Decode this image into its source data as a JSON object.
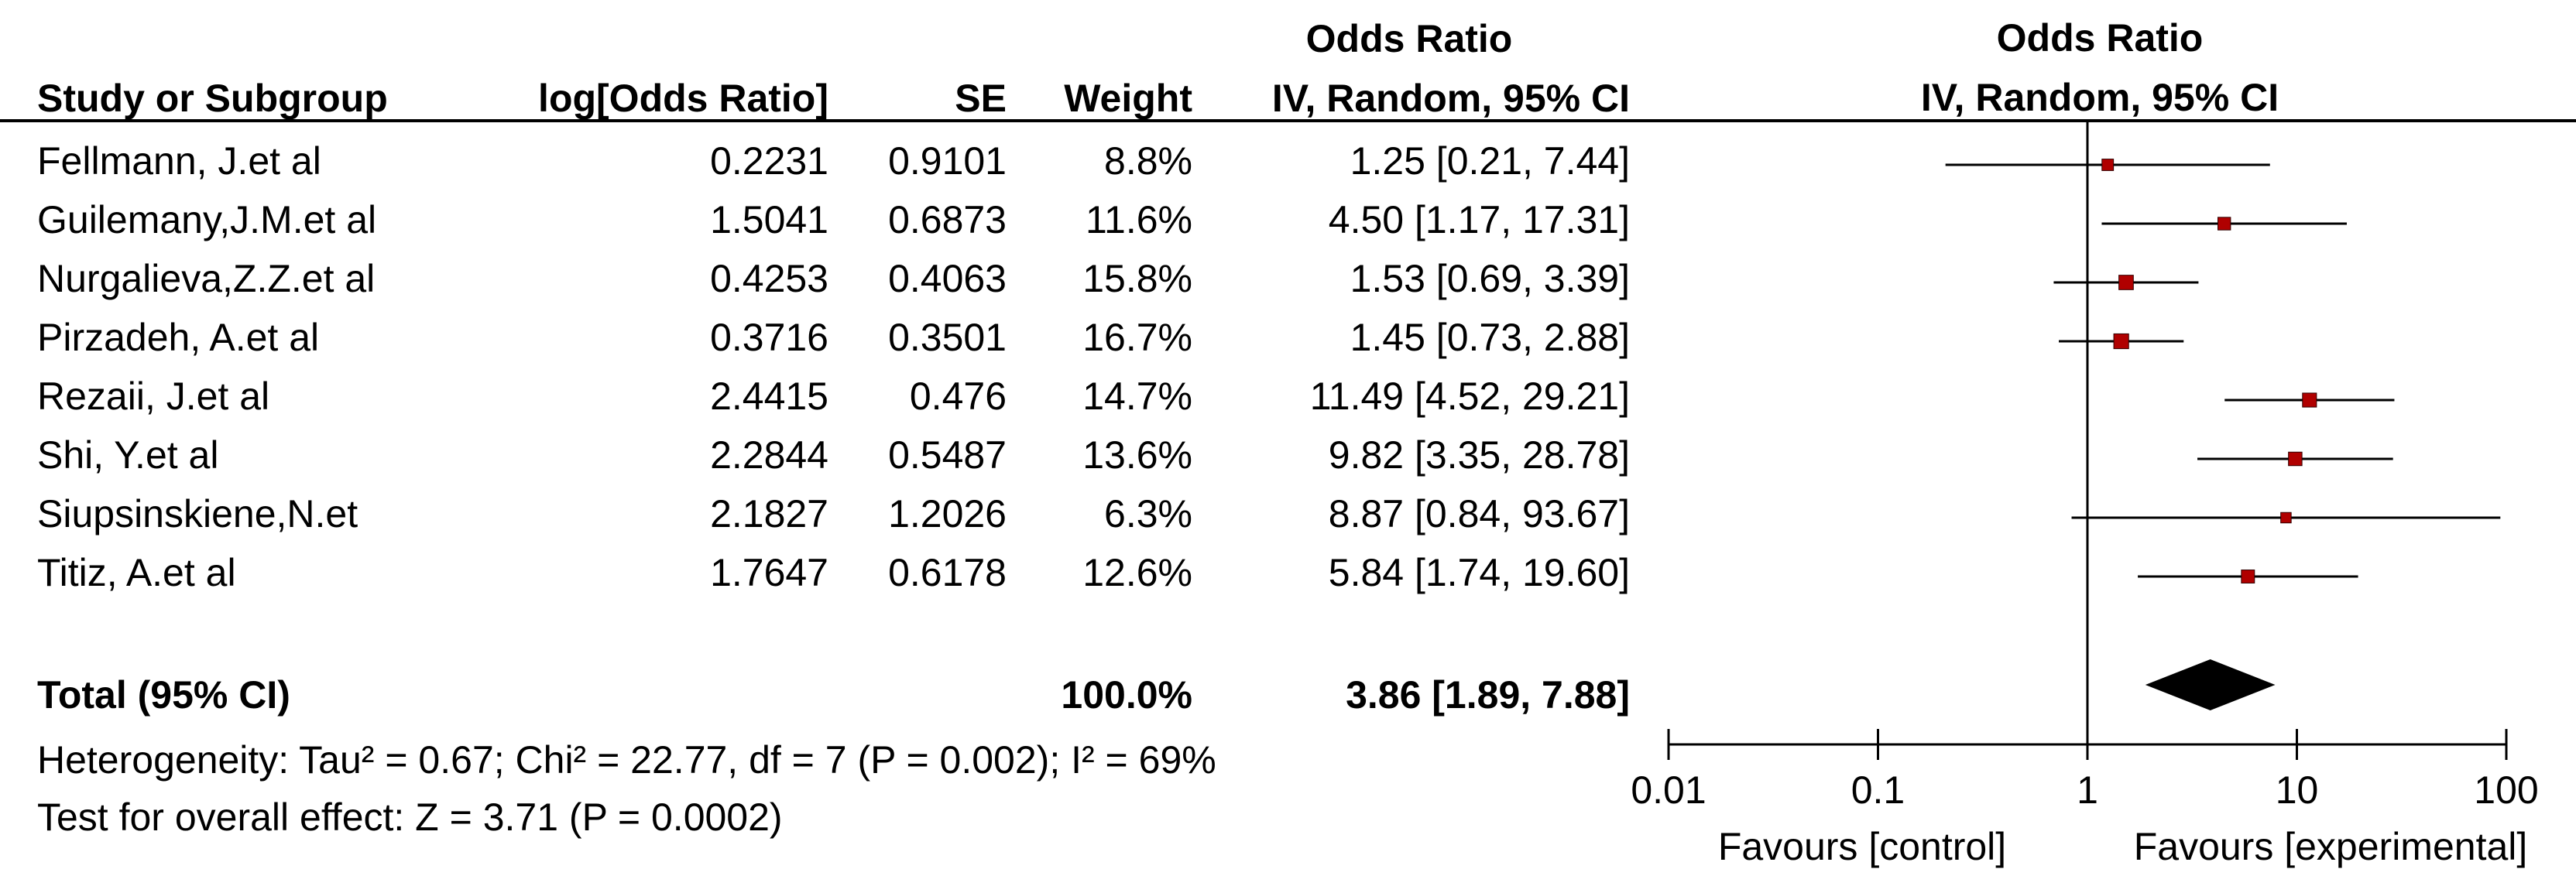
{
  "left_header": {
    "odds_ratio_title": "Odds Ratio",
    "col_study": "Study or Subgroup",
    "col_logor": "log[Odds Ratio]",
    "col_se": "SE",
    "col_weight": "Weight",
    "col_ci": "IV, Random, 95% CI"
  },
  "right_header": {
    "odds_ratio_title": "Odds Ratio",
    "method": "IV, Random, 95% CI"
  },
  "rows": [
    {
      "study": "Fellmann, J.et al",
      "logor": "0.2231",
      "se": "0.9101",
      "weight": "8.8%",
      "ci": "1.25 [0.21, 7.44]"
    },
    {
      "study": "Guilemany,J.M.et al",
      "logor": "1.5041",
      "se": "0.6873",
      "weight": "11.6%",
      "ci": "4.50 [1.17, 17.31]"
    },
    {
      "study": "Nurgalieva,Z.Z.et al",
      "logor": "0.4253",
      "se": "0.4063",
      "weight": "15.8%",
      "ci": "1.53 [0.69, 3.39]"
    },
    {
      "study": "Pirzadeh, A.et al",
      "logor": "0.3716",
      "se": "0.3501",
      "weight": "16.7%",
      "ci": "1.45 [0.73, 2.88]"
    },
    {
      "study": "Rezaii, J.et al",
      "logor": "2.4415",
      "se": "0.476",
      "weight": "14.7%",
      "ci": "11.49 [4.52, 29.21]"
    },
    {
      "study": "Shi, Y.et al",
      "logor": "2.2844",
      "se": "0.5487",
      "weight": "13.6%",
      "ci": "9.82 [3.35, 28.78]"
    },
    {
      "study": "Siupsinskiene,N.et",
      "logor": "2.1827",
      "se": "1.2026",
      "weight": "6.3%",
      "ci": "8.87 [0.84, 93.67]"
    },
    {
      "study": "Titiz, A.et al",
      "logor": "1.7647",
      "se": "0.6178",
      "weight": "12.6%",
      "ci": "5.84 [1.74, 19.60]"
    }
  ],
  "total": {
    "label": "Total (95% CI)",
    "weight": "100.0%",
    "ci": "3.86 [1.89, 7.88]"
  },
  "heterogeneity": "Heterogeneity: Tau² = 0.67; Chi² = 22.77, df = 7 (P = 0.002); I² = 69%",
  "overall_effect": "Test for overall effect: Z = 3.71 (P = 0.0002)",
  "colors": {
    "marker": "#b00000",
    "line": "#000000"
  },
  "chart_data": {
    "type": "scatter",
    "subtype": "forest-plot",
    "scale": "log",
    "xlim": [
      0.01,
      100
    ],
    "xticks": [
      "0.01",
      "0.1",
      "1",
      "10",
      "100"
    ],
    "reference_line": 1,
    "xlabel_left": "Favours [control]",
    "xlabel_right": "Favours [experimental]",
    "studies": [
      {
        "name": "Fellmann, J.et al",
        "or": 1.25,
        "lo": 0.21,
        "hi": 7.44,
        "weight": 8.8
      },
      {
        "name": "Guilemany,J.M.et al",
        "or": 4.5,
        "lo": 1.17,
        "hi": 17.31,
        "weight": 11.6
      },
      {
        "name": "Nurgalieva,Z.Z.et al",
        "or": 1.53,
        "lo": 0.69,
        "hi": 3.39,
        "weight": 15.8
      },
      {
        "name": "Pirzadeh, A.et al",
        "or": 1.45,
        "lo": 0.73,
        "hi": 2.88,
        "weight": 16.7
      },
      {
        "name": "Rezaii, J.et al",
        "or": 11.49,
        "lo": 4.52,
        "hi": 29.21,
        "weight": 14.7
      },
      {
        "name": "Shi, Y.et al",
        "or": 9.82,
        "lo": 3.35,
        "hi": 28.78,
        "weight": 13.6
      },
      {
        "name": "Siupsinskiene,N.et",
        "or": 8.87,
        "lo": 0.84,
        "hi": 93.67,
        "weight": 6.3
      },
      {
        "name": "Titiz, A.et al",
        "or": 5.84,
        "lo": 1.74,
        "hi": 19.6,
        "weight": 12.6
      }
    ],
    "pooled": {
      "or": 3.86,
      "lo": 1.89,
      "hi": 7.88
    }
  }
}
